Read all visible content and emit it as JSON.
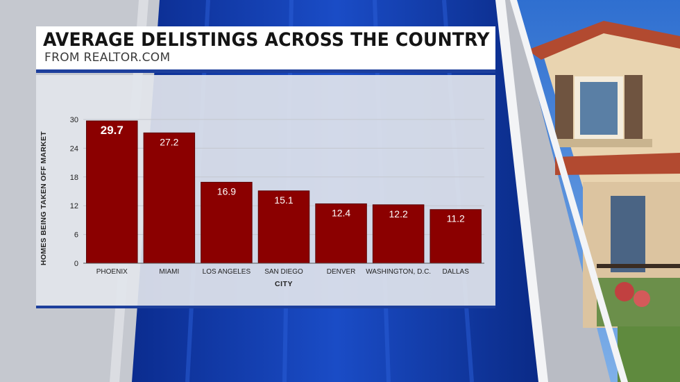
{
  "header": {
    "title": "AVERAGE DELISTINGS ACROSS THE COUNTRY",
    "subtitle": "FROM REALTOR.COM"
  },
  "colors": {
    "bar": "#8b0000",
    "bar_border": "#5a0000",
    "accent_blue": "#1d3f9c",
    "panel": "#e2e5ec"
  },
  "chart_data": {
    "type": "bar",
    "categories": [
      "PHOENIX",
      "MIAMI",
      "LOS ANGELES",
      "SAN DIEGO",
      "DENVER",
      "WASHINGTON, D.C.",
      "DALLAS"
    ],
    "values": [
      29.7,
      27.2,
      16.9,
      15.1,
      12.4,
      12.2,
      11.2
    ],
    "value_labels": [
      "29.7",
      "27.2",
      "16.9",
      "15.1",
      "12.4",
      "12.2",
      "11.2"
    ],
    "title": "AVERAGE DELISTINGS ACROSS THE COUNTRY",
    "subtitle": "FROM REALTOR.COM",
    "xlabel": "CITY",
    "ylabel": "HOMES BEING TAKEN OFF MARKET",
    "ylim": [
      0,
      30
    ],
    "yticks": [
      0,
      6,
      12,
      18,
      24,
      30
    ],
    "grid": true,
    "legend": "none"
  }
}
